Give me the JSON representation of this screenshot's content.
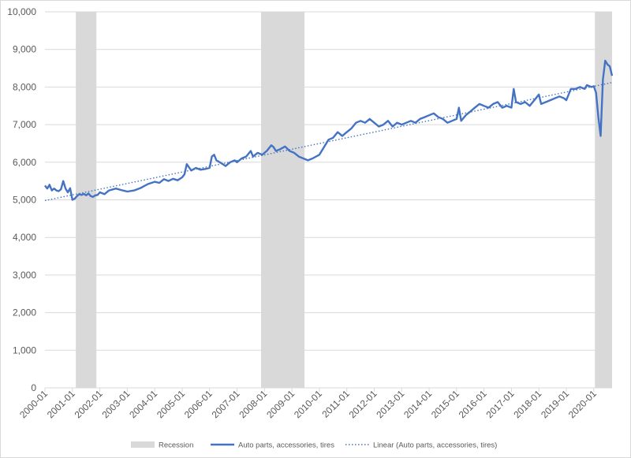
{
  "chart_data": {
    "type": "line",
    "title": "",
    "xlabel": "",
    "ylabel": "",
    "ylim": [
      0,
      10000
    ],
    "y_ticks": [
      "0",
      "1,000",
      "2,000",
      "3,000",
      "4,000",
      "5,000",
      "6,000",
      "7,000",
      "8,000",
      "9,000",
      "10,000"
    ],
    "y_tick_values": [
      0,
      1000,
      2000,
      3000,
      4000,
      5000,
      6000,
      7000,
      8000,
      9000,
      10000
    ],
    "x_ticks": [
      "2000-01",
      "2001-01",
      "2002-01",
      "2003-01",
      "2004-01",
      "2005-01",
      "2006-01",
      "2007-01",
      "2008-01",
      "2009-01",
      "2010-01",
      "2011-01",
      "2012-01",
      "2013-01",
      "2014-01",
      "2015-01",
      "2016-01",
      "2017-01",
      "2018-01",
      "2019-01",
      "2020-01"
    ],
    "x_range": [
      "2000-01",
      "2020-09"
    ],
    "grid": "horizontal",
    "legend_position": "bottom",
    "colors": {
      "line": "#4472c4",
      "trend": "#4472c4",
      "recession": "#d9d9d9",
      "grid": "#d9d9d9",
      "axis_text": "#595959"
    },
    "recessions": [
      {
        "start": "2001-03",
        "end": "2001-11"
      },
      {
        "start": "2007-12",
        "end": "2009-06"
      },
      {
        "start": "2020-02",
        "end": "2020-09"
      }
    ],
    "series": [
      {
        "name": "Auto parts, accessories, tires",
        "style": "solid",
        "points": [
          [
            "2000-01",
            5380
          ],
          [
            "2000-02",
            5300
          ],
          [
            "2000-03",
            5400
          ],
          [
            "2000-04",
            5250
          ],
          [
            "2000-05",
            5300
          ],
          [
            "2000-06",
            5250
          ],
          [
            "2000-07",
            5230
          ],
          [
            "2000-08",
            5280
          ],
          [
            "2000-09",
            5500
          ],
          [
            "2000-10",
            5300
          ],
          [
            "2000-11",
            5200
          ],
          [
            "2000-12",
            5310
          ],
          [
            "2001-01",
            5000
          ],
          [
            "2001-02",
            5030
          ],
          [
            "2001-03",
            5100
          ],
          [
            "2001-04",
            5150
          ],
          [
            "2001-05",
            5130
          ],
          [
            "2001-06",
            5160
          ],
          [
            "2001-07",
            5120
          ],
          [
            "2001-08",
            5170
          ],
          [
            "2001-09",
            5100
          ],
          [
            "2001-10",
            5080
          ],
          [
            "2001-11",
            5120
          ],
          [
            "2001-12",
            5130
          ],
          [
            "2002-01",
            5200
          ],
          [
            "2002-03",
            5150
          ],
          [
            "2002-05",
            5250
          ],
          [
            "2002-08",
            5300
          ],
          [
            "2002-11",
            5250
          ],
          [
            "2003-01",
            5220
          ],
          [
            "2003-04",
            5250
          ],
          [
            "2003-07",
            5320
          ],
          [
            "2003-10",
            5420
          ],
          [
            "2004-01",
            5480
          ],
          [
            "2004-03",
            5450
          ],
          [
            "2004-05",
            5550
          ],
          [
            "2004-07",
            5500
          ],
          [
            "2004-09",
            5560
          ],
          [
            "2004-11",
            5520
          ],
          [
            "2005-01",
            5600
          ],
          [
            "2005-02",
            5680
          ],
          [
            "2005-03",
            5950
          ],
          [
            "2005-05",
            5780
          ],
          [
            "2005-07",
            5850
          ],
          [
            "2005-09",
            5800
          ],
          [
            "2005-11",
            5820
          ],
          [
            "2006-01",
            5850
          ],
          [
            "2006-02",
            6150
          ],
          [
            "2006-03",
            6200
          ],
          [
            "2006-04",
            6050
          ],
          [
            "2006-06",
            5980
          ],
          [
            "2006-08",
            5900
          ],
          [
            "2006-10",
            6000
          ],
          [
            "2006-12",
            6050
          ],
          [
            "2007-01",
            6000
          ],
          [
            "2007-03",
            6100
          ],
          [
            "2007-05",
            6150
          ],
          [
            "2007-07",
            6300
          ],
          [
            "2007-08",
            6150
          ],
          [
            "2007-10",
            6250
          ],
          [
            "2007-12",
            6200
          ],
          [
            "2008-02",
            6300
          ],
          [
            "2008-04",
            6450
          ],
          [
            "2008-05",
            6400
          ],
          [
            "2008-06",
            6300
          ],
          [
            "2008-08",
            6350
          ],
          [
            "2008-10",
            6420
          ],
          [
            "2008-12",
            6300
          ],
          [
            "2009-02",
            6250
          ],
          [
            "2009-04",
            6150
          ],
          [
            "2009-06",
            6100
          ],
          [
            "2009-08",
            6050
          ],
          [
            "2009-10",
            6100
          ],
          [
            "2010-01",
            6200
          ],
          [
            "2010-03",
            6400
          ],
          [
            "2010-05",
            6600
          ],
          [
            "2010-07",
            6650
          ],
          [
            "2010-09",
            6800
          ],
          [
            "2010-11",
            6700
          ],
          [
            "2011-01",
            6800
          ],
          [
            "2011-03",
            6900
          ],
          [
            "2011-05",
            7050
          ],
          [
            "2011-07",
            7100
          ],
          [
            "2011-09",
            7050
          ],
          [
            "2011-11",
            7150
          ],
          [
            "2012-01",
            7050
          ],
          [
            "2012-03",
            6950
          ],
          [
            "2012-05",
            7000
          ],
          [
            "2012-07",
            7100
          ],
          [
            "2012-09",
            6950
          ],
          [
            "2012-11",
            7050
          ],
          [
            "2013-01",
            7000
          ],
          [
            "2013-03",
            7050
          ],
          [
            "2013-05",
            7100
          ],
          [
            "2013-07",
            7050
          ],
          [
            "2013-09",
            7150
          ],
          [
            "2013-11",
            7200
          ],
          [
            "2014-01",
            7250
          ],
          [
            "2014-03",
            7300
          ],
          [
            "2014-05",
            7200
          ],
          [
            "2014-07",
            7150
          ],
          [
            "2014-09",
            7050
          ],
          [
            "2014-11",
            7100
          ],
          [
            "2015-01",
            7150
          ],
          [
            "2015-02",
            7450
          ],
          [
            "2015-03",
            7100
          ],
          [
            "2015-05",
            7250
          ],
          [
            "2015-07",
            7350
          ],
          [
            "2015-09",
            7450
          ],
          [
            "2015-11",
            7550
          ],
          [
            "2016-01",
            7500
          ],
          [
            "2016-03",
            7450
          ],
          [
            "2016-05",
            7550
          ],
          [
            "2016-07",
            7600
          ],
          [
            "2016-09",
            7450
          ],
          [
            "2016-11",
            7500
          ],
          [
            "2017-01",
            7450
          ],
          [
            "2017-02",
            7950
          ],
          [
            "2017-03",
            7600
          ],
          [
            "2017-05",
            7550
          ],
          [
            "2017-07",
            7600
          ],
          [
            "2017-09",
            7500
          ],
          [
            "2017-11",
            7650
          ],
          [
            "2018-01",
            7800
          ],
          [
            "2018-02",
            7550
          ],
          [
            "2018-04",
            7600
          ],
          [
            "2018-06",
            7650
          ],
          [
            "2018-08",
            7700
          ],
          [
            "2018-10",
            7750
          ],
          [
            "2018-12",
            7700
          ],
          [
            "2019-01",
            7650
          ],
          [
            "2019-03",
            7950
          ],
          [
            "2019-05",
            7950
          ],
          [
            "2019-07",
            8000
          ],
          [
            "2019-09",
            7950
          ],
          [
            "2019-10",
            8050
          ],
          [
            "2019-12",
            8000
          ],
          [
            "2020-01",
            8020
          ],
          [
            "2020-02",
            7850
          ],
          [
            "2020-03",
            7200
          ],
          [
            "2020-04",
            6700
          ],
          [
            "2020-05",
            8200
          ],
          [
            "2020-06",
            8700
          ],
          [
            "2020-07",
            8600
          ],
          [
            "2020-08",
            8550
          ],
          [
            "2020-09",
            8300
          ]
        ]
      },
      {
        "name": "Linear (Auto parts, accessories, tires)",
        "style": "dotted",
        "points": [
          [
            "2000-01",
            4980
          ],
          [
            "2020-09",
            8120
          ]
        ]
      }
    ],
    "legend": [
      {
        "label": "Recession",
        "kind": "swatch"
      },
      {
        "label": "Auto parts, accessories, tires",
        "kind": "solid-line"
      },
      {
        "label": "Linear (Auto parts, accessories, tires)",
        "kind": "dotted-line"
      }
    ]
  }
}
